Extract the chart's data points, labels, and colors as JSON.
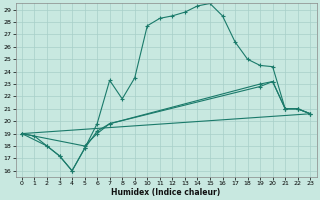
{
  "xlabel": "Humidex (Indice chaleur)",
  "bg_color": "#c8e8e0",
  "line_color": "#1a7a6a",
  "grid_color": "#a8cfc8",
  "ylim": [
    15.5,
    29.5
  ],
  "xlim": [
    -0.5,
    23.5
  ],
  "yticks": [
    16,
    17,
    18,
    19,
    20,
    21,
    22,
    23,
    24,
    25,
    26,
    27,
    28,
    29
  ],
  "xticks": [
    0,
    1,
    2,
    3,
    4,
    5,
    6,
    7,
    8,
    9,
    10,
    11,
    12,
    13,
    14,
    15,
    16,
    17,
    18,
    19,
    20,
    21,
    22,
    23
  ],
  "line1_x": [
    0,
    1,
    2,
    3,
    4,
    5,
    6,
    7,
    8,
    9,
    10,
    11,
    12,
    13,
    14,
    15,
    16,
    17,
    18,
    19,
    20,
    21,
    22,
    23
  ],
  "line1_y": [
    19.0,
    18.8,
    18.0,
    17.2,
    16.0,
    17.8,
    19.8,
    23.3,
    21.8,
    23.5,
    27.7,
    28.3,
    28.5,
    28.8,
    29.3,
    29.5,
    28.5,
    26.4,
    25.0,
    24.5,
    24.4,
    21.0,
    21.0,
    20.6
  ],
  "line2_x": [
    0,
    2,
    3,
    4,
    5,
    6,
    7,
    19,
    20,
    21,
    22,
    23
  ],
  "line2_y": [
    19.0,
    18.0,
    17.2,
    16.0,
    17.8,
    19.2,
    19.8,
    23.0,
    23.2,
    21.0,
    21.0,
    20.6
  ],
  "line3_x": [
    0,
    5,
    6,
    7,
    19,
    20,
    21,
    22,
    23
  ],
  "line3_y": [
    19.0,
    18.0,
    19.0,
    19.8,
    22.8,
    23.2,
    21.0,
    21.0,
    20.6
  ],
  "line4_x": [
    0,
    23
  ],
  "line4_y": [
    19.0,
    20.6
  ]
}
